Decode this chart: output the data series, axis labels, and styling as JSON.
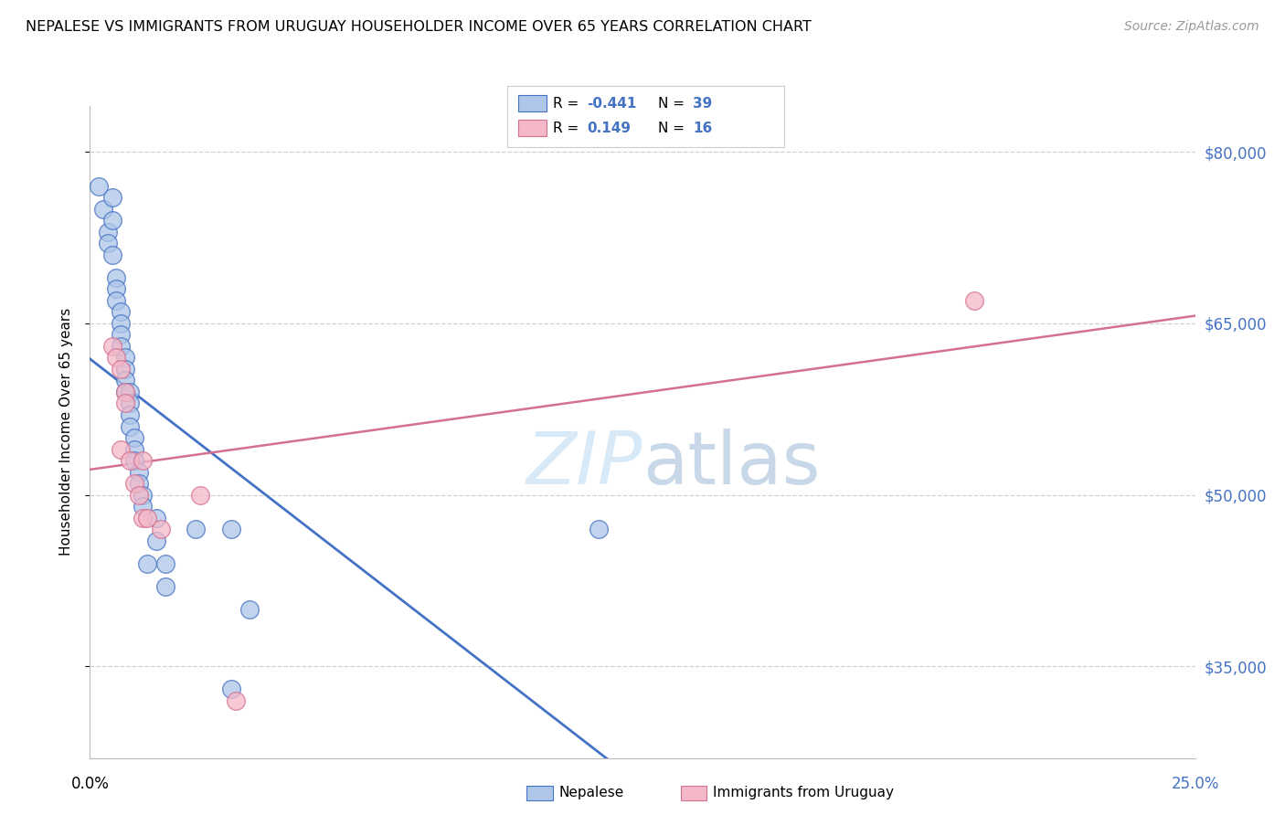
{
  "title": "NEPALESE VS IMMIGRANTS FROM URUGUAY HOUSEHOLDER INCOME OVER 65 YEARS CORRELATION CHART",
  "source": "Source: ZipAtlas.com",
  "ylabel": "Householder Income Over 65 years",
  "legend_label1": "Nepalese",
  "legend_label2": "Immigrants from Uruguay",
  "R1": -0.441,
  "N1": 39,
  "R2": 0.149,
  "N2": 16,
  "ytick_labels": [
    "$35,000",
    "$50,000",
    "$65,000",
    "$80,000"
  ],
  "ytick_values": [
    35000,
    50000,
    65000,
    80000
  ],
  "ymin": 27000,
  "ymax": 84000,
  "xmin": 0.0,
  "xmax": 0.25,
  "color_blue": "#aec6e8",
  "color_pink": "#f4b8c8",
  "line_color_blue": "#4472c4",
  "line_color_pink": "#d47090",
  "line_color_dashed": "#b8cce4",
  "grid_color": "#d0d0d8",
  "watermark_color": "#d8eaf8",
  "nepalese_x": [
    0.002,
    0.003,
    0.004,
    0.005,
    0.005,
    0.006,
    0.006,
    0.006,
    0.007,
    0.007,
    0.007,
    0.007,
    0.008,
    0.008,
    0.008,
    0.008,
    0.009,
    0.009,
    0.009,
    0.009,
    0.01,
    0.01,
    0.01,
    0.011,
    0.011,
    0.012,
    0.012,
    0.013,
    0.015,
    0.015,
    0.017,
    0.017,
    0.024,
    0.032,
    0.032,
    0.036,
    0.115,
    0.004,
    0.005
  ],
  "nepalese_y": [
    77000,
    75000,
    73000,
    76000,
    74000,
    69000,
    68000,
    67000,
    66000,
    65000,
    64000,
    63000,
    62000,
    61000,
    60000,
    59000,
    59000,
    58000,
    57000,
    56000,
    55000,
    54000,
    53000,
    52000,
    51000,
    50000,
    49000,
    44000,
    48000,
    46000,
    44000,
    42000,
    47000,
    47000,
    33000,
    40000,
    47000,
    72000,
    71000
  ],
  "uruguay_x": [
    0.005,
    0.006,
    0.007,
    0.007,
    0.008,
    0.008,
    0.009,
    0.01,
    0.011,
    0.012,
    0.012,
    0.013,
    0.016,
    0.025,
    0.033,
    0.2
  ],
  "uruguay_y": [
    63000,
    62000,
    61000,
    54000,
    59000,
    58000,
    53000,
    51000,
    50000,
    53000,
    48000,
    48000,
    47000,
    50000,
    32000,
    67000
  ]
}
